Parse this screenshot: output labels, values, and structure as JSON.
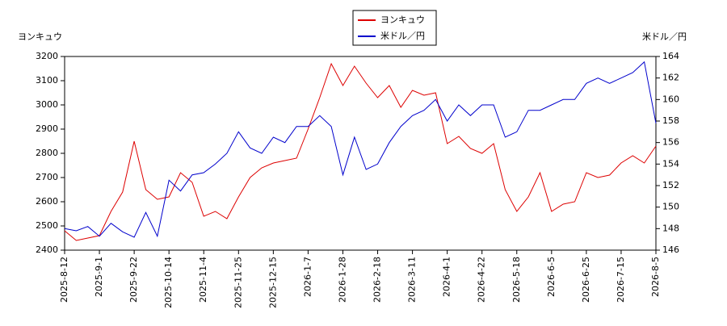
{
  "chart_data": {
    "type": "line",
    "y_label": "ヨンキュウ",
    "y2_label": "米ドル／円",
    "categories": [
      "2025-8-12",
      null,
      null,
      "2025-9-1",
      null,
      null,
      "2025-9-22",
      null,
      null,
      "2025-10-14",
      null,
      null,
      "2025-11-4",
      null,
      null,
      "2025-11-25",
      null,
      null,
      "2025-12-15",
      null,
      null,
      "2026-1-7",
      null,
      null,
      "2026-1-28",
      null,
      null,
      "2026-2-18",
      null,
      null,
      "2026-3-11",
      null,
      null,
      "2026-4-1",
      null,
      null,
      "2026-4-22",
      null,
      null,
      "2026-5-18",
      null,
      null,
      "2026-6-5",
      null,
      null,
      "2026-6-25",
      null,
      null,
      "2026-7-15",
      null,
      null,
      "2026-8-5"
    ],
    "series": [
      {
        "name": "ヨンキュウ",
        "color": "#dd0000",
        "values": [
          2480,
          2440,
          2450,
          2460,
          2560,
          2640,
          2850,
          2650,
          2610,
          2620,
          2720,
          2680,
          2540,
          2560,
          2530,
          2620,
          2700,
          2740,
          2760,
          2770,
          2780,
          2900,
          3030,
          3170,
          3080,
          3160,
          3090,
          3030,
          3080,
          2990,
          3060,
          3040,
          3050,
          2840,
          2870,
          2820,
          2800,
          2840,
          2650,
          2560,
          2620,
          2720,
          2560,
          2590,
          2600,
          2720,
          2700,
          2710,
          2760,
          2790,
          2760,
          2830
        ]
      },
      {
        "name": "米ドル／円",
        "color": "#0000cc",
        "axis": "y2",
        "values": [
          148,
          147.8,
          148.2,
          147.3,
          148.5,
          147.7,
          147.2,
          149.5,
          147.3,
          152.5,
          151.5,
          153,
          153.2,
          154,
          155,
          157,
          155.5,
          155,
          156.5,
          156,
          157.5,
          157.5,
          158.5,
          157.5,
          153,
          156.5,
          153.5,
          154,
          156,
          157.5,
          158.5,
          159,
          160,
          158,
          159.5,
          158.5,
          159.5,
          159.5,
          156.5,
          157,
          159,
          159,
          159.5,
          160,
          160,
          161.5,
          162,
          161.5,
          162,
          162.5,
          163.5,
          157.8
        ]
      }
    ],
    "ylim": [
      2400,
      3200
    ],
    "yticks": [
      2400,
      2500,
      2600,
      2700,
      2800,
      2900,
      3000,
      3100,
      3200
    ],
    "y2lim": [
      146,
      164
    ],
    "y2ticks": [
      146,
      148,
      150,
      152,
      154,
      156,
      158,
      160,
      162,
      164
    ],
    "legend": "top"
  }
}
